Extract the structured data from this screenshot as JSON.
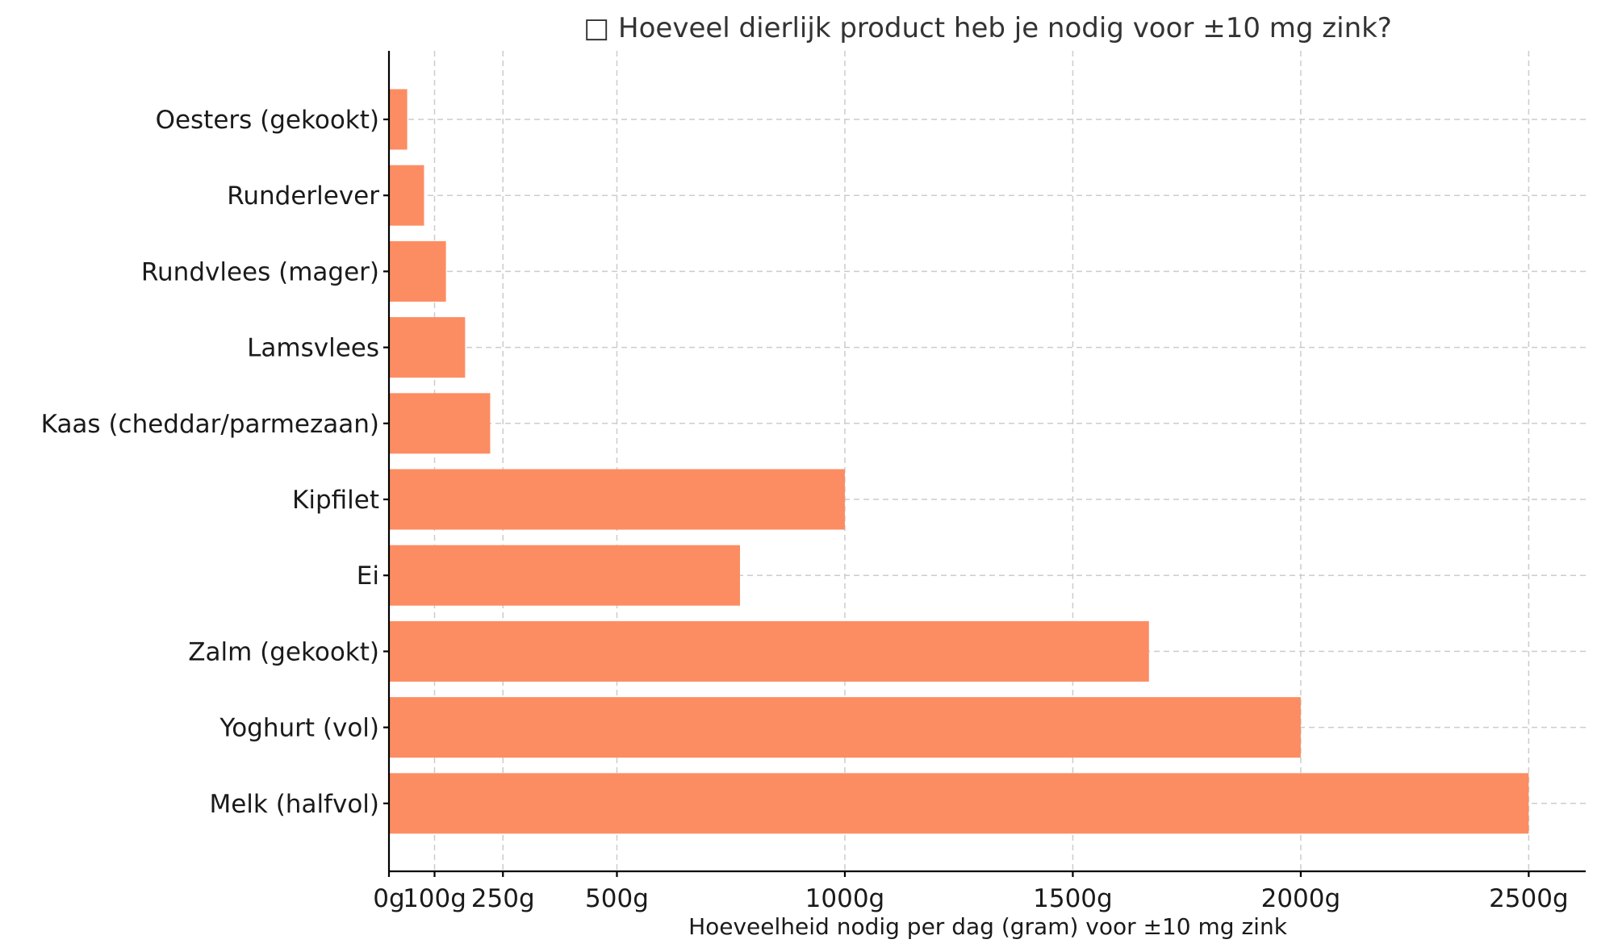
{
  "chart_data": {
    "type": "bar",
    "orientation": "horizontal",
    "title": "□ Hoeveel dierlijk product heb je nodig voor ±10 mg zink?",
    "xlabel": "Hoeveelheid nodig per dag (gram) voor ±10 mg zink",
    "ylabel": "",
    "categories": [
      "Oesters (gekookt)",
      "Runderlever",
      "Rundvlees (mager)",
      "Lamsvlees",
      "Kaas (cheddar/parmezaan)",
      "Kipfilet",
      "Ei",
      "Zalm (gekookt)",
      "Yoghurt (vol)",
      "Melk (halfvol)"
    ],
    "values": [
      40,
      77,
      125,
      167,
      222,
      1000,
      770,
      1667,
      2000,
      2500
    ],
    "xticks": [
      0,
      100,
      250,
      500,
      1000,
      1500,
      2000,
      2500
    ],
    "xtick_labels": [
      "0g",
      "100g",
      "250g",
      "500g",
      "1000g",
      "1500g",
      "2000g",
      "2500g"
    ],
    "xlim": [
      0,
      2625
    ],
    "grid": true,
    "bar_color": "#fc8d62"
  }
}
